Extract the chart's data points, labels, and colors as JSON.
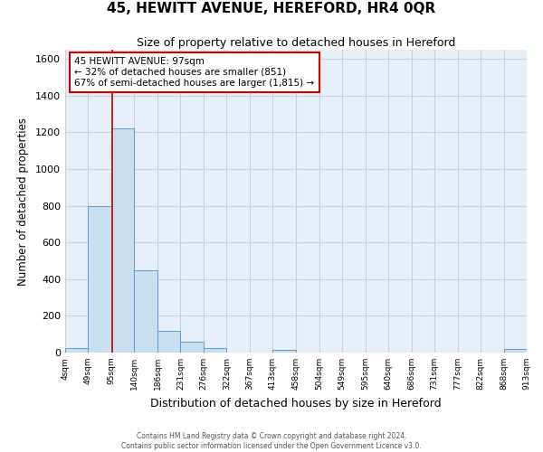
{
  "title": "45, HEWITT AVENUE, HEREFORD, HR4 0QR",
  "subtitle": "Size of property relative to detached houses in Hereford",
  "xlabel": "Distribution of detached houses by size in Hereford",
  "ylabel": "Number of detached properties",
  "footer_line1": "Contains HM Land Registry data © Crown copyright and database right 2024.",
  "footer_line2": "Contains public sector information licensed under the Open Government Licence v3.0.",
  "bin_edges": [
    4,
    49,
    95,
    140,
    186,
    231,
    276,
    322,
    367,
    413,
    458,
    504,
    549,
    595,
    640,
    686,
    731,
    777,
    822,
    868,
    913
  ],
  "bin_counts": [
    25,
    800,
    1220,
    450,
    120,
    60,
    25,
    0,
    0,
    15,
    0,
    0,
    0,
    0,
    0,
    0,
    0,
    0,
    0,
    20
  ],
  "bar_color": "#c8dff0",
  "bar_edge_color": "#5b9bd5",
  "property_size": 97,
  "marker_line_color": "#cc0000",
  "annotation_text_line1": "45 HEWITT AVENUE: 97sqm",
  "annotation_text_line2": "← 32% of detached houses are smaller (851)",
  "annotation_text_line3": "67% of semi-detached houses are larger (1,815) →",
  "annotation_box_color": "#ffffff",
  "annotation_box_edge_color": "#cc0000",
  "ylim": [
    0,
    1650
  ],
  "xlim": [
    4,
    913
  ],
  "bg_color": "#ffffff",
  "axes_bg_color": "#e8eef8",
  "grid_color": "#c8d0de",
  "tick_labels": [
    "4sqm",
    "49sqm",
    "95sqm",
    "140sqm",
    "186sqm",
    "231sqm",
    "276sqm",
    "322sqm",
    "367sqm",
    "413sqm",
    "458sqm",
    "504sqm",
    "549sqm",
    "595sqm",
    "640sqm",
    "686sqm",
    "731sqm",
    "777sqm",
    "822sqm",
    "868sqm",
    "913sqm"
  ],
  "yticks": [
    0,
    200,
    400,
    600,
    800,
    1000,
    1200,
    1400,
    1600
  ]
}
